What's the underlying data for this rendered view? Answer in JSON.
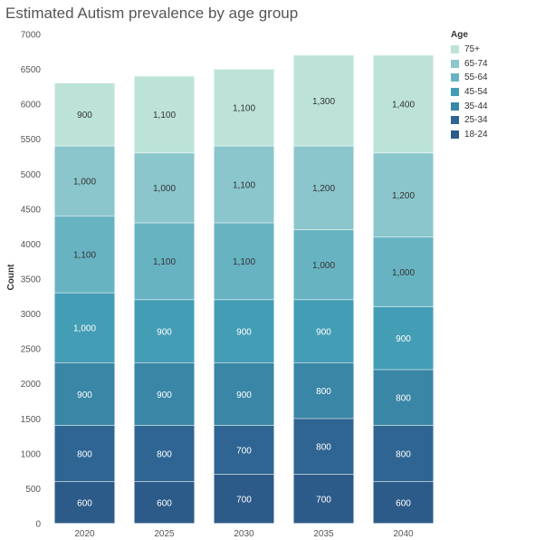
{
  "chart_data": {
    "type": "bar",
    "stacked": true,
    "title": "Estimated Autism prevalence by age group",
    "xlabel": "",
    "ylabel": "Count",
    "ylim": [
      0,
      7000
    ],
    "yticks": [
      0,
      500,
      1000,
      1500,
      2000,
      2500,
      3000,
      3500,
      4000,
      4500,
      5000,
      5500,
      6000,
      6500,
      7000
    ],
    "categories": [
      "2020",
      "2025",
      "2030",
      "2035",
      "2040"
    ],
    "legend_title": "Age",
    "legend_position": "top-right",
    "grid": false,
    "series": [
      {
        "name": "18-24",
        "color": "#2d5b89",
        "values": [
          600,
          600,
          700,
          700,
          600
        ],
        "labels": [
          "600",
          "600",
          "700",
          "700",
          "600"
        ]
      },
      {
        "name": "25-34",
        "color": "#2f6592",
        "values": [
          800,
          800,
          700,
          800,
          800
        ],
        "labels": [
          "800",
          "800",
          "700",
          "800",
          "800"
        ]
      },
      {
        "name": "35-44",
        "color": "#3a86a6",
        "values": [
          900,
          900,
          900,
          800,
          800
        ],
        "labels": [
          "900",
          "900",
          "900",
          "800",
          "800"
        ]
      },
      {
        "name": "45-54",
        "color": "#439db5",
        "values": [
          1000,
          900,
          900,
          900,
          900
        ],
        "labels": [
          "1,000",
          "900",
          "900",
          "900",
          "900"
        ]
      },
      {
        "name": "55-64",
        "color": "#68b3c2",
        "values": [
          1100,
          1100,
          1100,
          1000,
          1000
        ],
        "labels": [
          "1,100",
          "1,100",
          "1,100",
          "1,000",
          "1,000"
        ]
      },
      {
        "name": "65-74",
        "color": "#8ac6cc",
        "values": [
          1000,
          1000,
          1100,
          1200,
          1200
        ],
        "labels": [
          "1,000",
          "1,000",
          "1,100",
          "1,200",
          "1,200"
        ]
      },
      {
        "name": "75+",
        "color": "#bde3d9",
        "values": [
          900,
          1100,
          1100,
          1300,
          1400
        ],
        "labels": [
          "900",
          "1,100",
          "1,100",
          "1,300",
          "1,400"
        ]
      }
    ],
    "legend_order": [
      "75+",
      "65-74",
      "55-64",
      "45-54",
      "35-44",
      "25-34",
      "18-24"
    ],
    "dark_label_series": [
      "55-64",
      "65-74",
      "75+"
    ]
  }
}
